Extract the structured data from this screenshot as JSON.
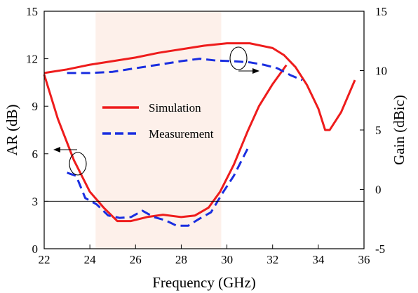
{
  "chart_data": {
    "type": "line",
    "xlabel": "Frequency (GHz)",
    "ylabel_left": "AR (dB)",
    "ylabel_right": "Gain (dBic)",
    "xlim": [
      22,
      36
    ],
    "ylim_left": [
      0,
      15
    ],
    "ylim_right": [
      -5,
      15
    ],
    "x_ticks": [
      22,
      24,
      26,
      28,
      30,
      32,
      34,
      36
    ],
    "y_left_ticks": [
      0,
      3,
      6,
      9,
      12,
      15
    ],
    "y_right_ticks": [
      -5,
      0,
      5,
      10,
      15
    ],
    "reference_line": {
      "axis": "left",
      "value": 3
    },
    "shaded_band": {
      "x_start": 24.25,
      "x_end": 29.75,
      "color": "#fdf0ea"
    },
    "grid": false,
    "legend_position": "center-left",
    "series_colors": {
      "Simulation": "#ee1c1c",
      "Measurement": "#1a2ee0"
    },
    "series": [
      {
        "name": "Simulation",
        "quantity": "AR",
        "axis": "left",
        "style": "solid",
        "x": [
          22.0,
          22.6,
          23.3,
          24.0,
          24.6,
          25.2,
          25.8,
          26.5,
          27.2,
          28.0,
          28.6,
          29.2,
          29.7,
          30.3,
          30.9,
          31.4,
          32.0,
          32.6
        ],
        "y": [
          11.0,
          8.2,
          5.6,
          3.6,
          2.6,
          1.75,
          1.75,
          2.0,
          2.15,
          2.0,
          2.1,
          2.6,
          3.6,
          5.3,
          7.4,
          9.0,
          10.4,
          11.6
        ]
      },
      {
        "name": "Simulation",
        "quantity": "Gain",
        "axis": "right",
        "style": "solid",
        "x": [
          22.0,
          23.0,
          24.0,
          25.0,
          26.0,
          27.0,
          28.0,
          29.0,
          30.0,
          31.0,
          32.0,
          32.5,
          33.0,
          33.5,
          34.0,
          34.3,
          34.5,
          35.0,
          35.6
        ],
        "y": [
          9.8,
          10.1,
          10.5,
          10.8,
          11.1,
          11.5,
          11.8,
          12.1,
          12.3,
          12.3,
          11.9,
          11.3,
          10.3,
          8.8,
          6.8,
          5.0,
          5.0,
          6.5,
          9.2
        ]
      },
      {
        "name": "Measurement",
        "quantity": "AR",
        "axis": "left",
        "style": "dashed",
        "x": [
          23.0,
          23.4,
          23.8,
          24.3,
          24.8,
          25.3,
          25.8,
          26.3,
          26.8,
          27.3,
          27.8,
          28.3,
          28.8,
          29.3,
          29.8,
          30.3,
          30.9
        ],
        "y": [
          4.8,
          4.6,
          3.2,
          2.8,
          2.1,
          1.95,
          2.0,
          2.4,
          2.0,
          1.8,
          1.45,
          1.45,
          1.9,
          2.3,
          3.5,
          4.6,
          6.3
        ]
      },
      {
        "name": "Measurement",
        "quantity": "Gain",
        "axis": "right",
        "style": "dashed",
        "x": [
          23.0,
          24.0,
          25.0,
          26.0,
          27.0,
          28.0,
          28.8,
          29.5,
          30.2,
          31.0,
          31.6,
          32.2,
          32.8,
          33.3
        ],
        "y": [
          9.8,
          9.8,
          9.9,
          10.2,
          10.5,
          10.8,
          11.0,
          10.85,
          10.8,
          10.7,
          10.5,
          10.2,
          9.6,
          9.2
        ]
      }
    ]
  }
}
